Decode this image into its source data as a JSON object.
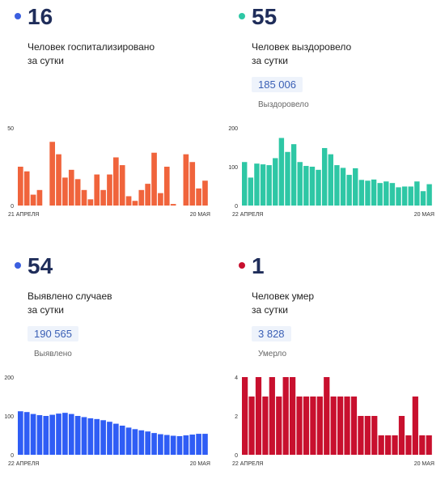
{
  "panels": [
    {
      "number": "16",
      "label_line1": "Человек госпитализировано",
      "label_line2": "за сутки",
      "total": "",
      "total_label": "",
      "color": "#f0643c",
      "dot_color": "#3b5fe0"
    },
    {
      "number": "55",
      "label_line1": "Человек выздоровело",
      "label_line2": "за сутки",
      "total": "185 006",
      "total_label": "Выздоровело",
      "color": "#2ec7a5",
      "dot_color": "#2ec7a5"
    },
    {
      "number": "54",
      "label_line1": "Выявлено случаев",
      "label_line2": "за сутки",
      "total": "190 565",
      "total_label": "Выявлено",
      "color": "#2f5df5",
      "dot_color": "#3b5fe0"
    },
    {
      "number": "1",
      "label_line1": "Человек умер",
      "label_line2": "за сутки",
      "total": "3 828",
      "total_label": "Умерло",
      "color": "#c8102e",
      "dot_color": "#c8102e"
    }
  ],
  "chart_data": [
    {
      "type": "bar",
      "x_start": "21 АПРЕЛЯ",
      "x_end": "20 МАЯ",
      "yticks": [
        0,
        50
      ],
      "ylim": [
        0,
        50
      ],
      "values": [
        25,
        22,
        7,
        10,
        0,
        41,
        33,
        18,
        23,
        17,
        10,
        4,
        20,
        10,
        20,
        31,
        26,
        6,
        3,
        10,
        14,
        34,
        8,
        25,
        1,
        0,
        33,
        28,
        11,
        16
      ],
      "color": "#f0643c"
    },
    {
      "type": "bar",
      "x_start": "22 АПРЕЛЯ",
      "x_end": "20 МАЯ",
      "yticks": [
        0,
        100,
        200
      ],
      "ylim": [
        0,
        200
      ],
      "values": [
        112,
        72,
        108,
        106,
        104,
        122,
        174,
        138,
        158,
        112,
        102,
        100,
        92,
        148,
        132,
        104,
        97,
        79,
        96,
        66,
        64,
        67,
        58,
        62,
        58,
        47,
        49,
        49,
        62,
        37,
        55
      ],
      "color": "#2ec7a5"
    },
    {
      "type": "bar",
      "x_start": "22 АПРЕЛЯ",
      "x_end": "20 МАЯ",
      "yticks": [
        0,
        100,
        200
      ],
      "ylim": [
        0,
        200
      ],
      "values": [
        112,
        110,
        105,
        102,
        100,
        103,
        106,
        108,
        105,
        100,
        97,
        94,
        92,
        89,
        85,
        80,
        75,
        70,
        66,
        63,
        60,
        56,
        53,
        51,
        49,
        48,
        50,
        52,
        54,
        54
      ],
      "color": "#2f5df5"
    },
    {
      "type": "bar",
      "x_start": "22 АПРЕЛЯ",
      "x_end": "20 МАЯ",
      "yticks": [
        0,
        2,
        4
      ],
      "ylim": [
        0,
        4
      ],
      "values": [
        4,
        3,
        4,
        3,
        4,
        3,
        4,
        4,
        3,
        3,
        3,
        3,
        4,
        3,
        3,
        3,
        3,
        2,
        2,
        2,
        1,
        1,
        1,
        2,
        1,
        3,
        1,
        1
      ],
      "color": "#c8102e"
    }
  ]
}
